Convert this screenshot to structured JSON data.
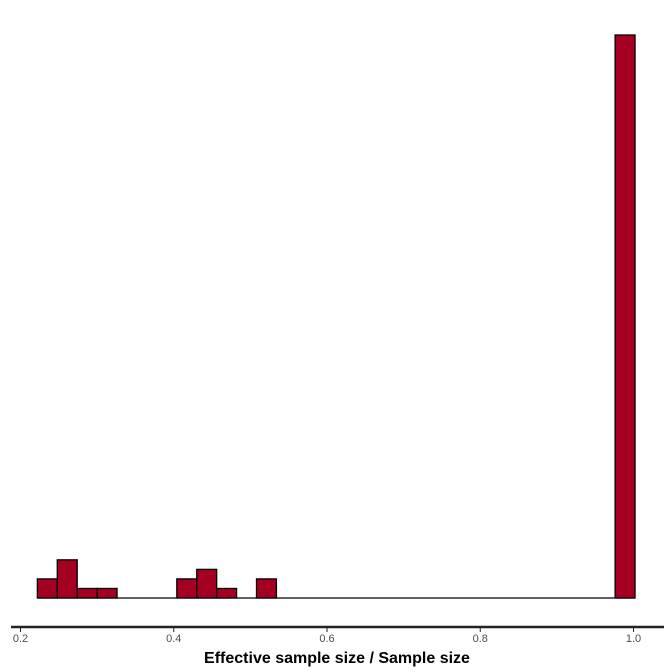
{
  "chart_data": {
    "type": "bar",
    "title": "",
    "xlabel": "Effective sample size / Sample size",
    "ylabel": "",
    "xlim": [
      0.2,
      1.0
    ],
    "x_ticks": [
      0.2,
      0.4,
      0.6,
      0.8,
      1.0
    ],
    "x_tick_labels": [
      "0.2",
      "0.4",
      "0.6",
      "0.8",
      "1.0"
    ],
    "y_axis_shown": false,
    "grid": false,
    "legend": "none",
    "bin_width": 0.026,
    "bins": [
      {
        "x0": 0.222,
        "x1": 0.248,
        "count": 2
      },
      {
        "x0": 0.248,
        "x1": 0.274,
        "count": 4
      },
      {
        "x0": 0.274,
        "x1": 0.3,
        "count": 1
      },
      {
        "x0": 0.3,
        "x1": 0.326,
        "count": 1
      },
      {
        "x0": 0.326,
        "x1": 0.352,
        "count": 0
      },
      {
        "x0": 0.352,
        "x1": 0.378,
        "count": 0
      },
      {
        "x0": 0.378,
        "x1": 0.404,
        "count": 0
      },
      {
        "x0": 0.404,
        "x1": 0.43,
        "count": 2
      },
      {
        "x0": 0.43,
        "x1": 0.456,
        "count": 3
      },
      {
        "x0": 0.456,
        "x1": 0.482,
        "count": 1
      },
      {
        "x0": 0.482,
        "x1": 0.508,
        "count": 0
      },
      {
        "x0": 0.508,
        "x1": 0.534,
        "count": 2
      },
      {
        "x0": 0.534,
        "x1": 0.976,
        "count": 0
      },
      {
        "x0": 0.976,
        "x1": 1.002,
        "count": 59
      }
    ],
    "colors": {
      "fill": "#a50021",
      "stroke": "#000000",
      "axis": "#222222"
    }
  }
}
